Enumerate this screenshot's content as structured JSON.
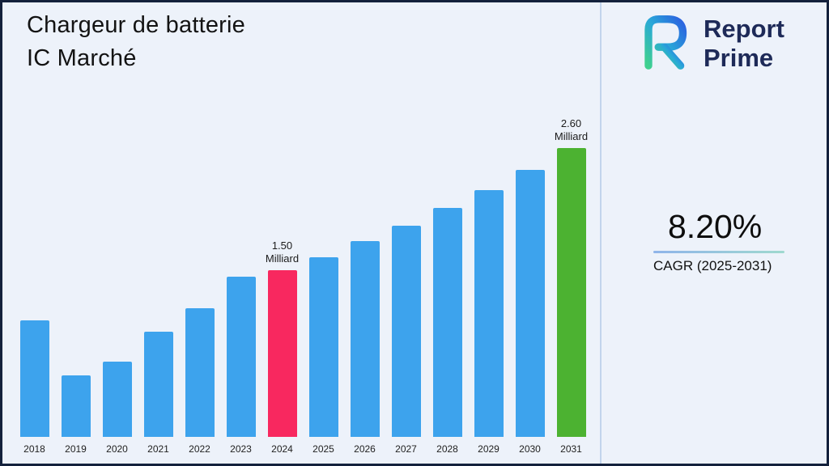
{
  "header": {
    "title_line1": "Chargeur de batterie",
    "title_line2": "IC Marché"
  },
  "brand": {
    "name_line1": "Report",
    "name_line2": "Prime",
    "name_color": "#1e2a58",
    "logo_icon": "reportprime-logo-icon",
    "logo_gradient": [
      "#3fd08f",
      "#29a8d8",
      "#2b5fe0"
    ]
  },
  "stats": {
    "cagr_value": "8.20%",
    "cagr_label": "CAGR (2025-2031)"
  },
  "chart_data": {
    "type": "bar",
    "title": "Chargeur de batterie IC Marché",
    "unit": "Milliard",
    "categories": [
      "2018",
      "2019",
      "2020",
      "2021",
      "2022",
      "2023",
      "2024",
      "2025",
      "2026",
      "2027",
      "2028",
      "2029",
      "2030",
      "2031"
    ],
    "values": [
      1.05,
      0.55,
      0.68,
      0.95,
      1.16,
      1.44,
      1.5,
      1.62,
      1.76,
      1.9,
      2.06,
      2.22,
      2.4,
      2.6
    ],
    "ylim": [
      0,
      2.6
    ],
    "grid": false,
    "legend": false,
    "bar_colors": {
      "default": "#3da3ed",
      "2024": "#f8285f",
      "2031": "#4cb231"
    },
    "annotations": [
      {
        "category": "2024",
        "lines": [
          "1.50",
          "Milliard"
        ]
      },
      {
        "category": "2031",
        "lines": [
          "2.60",
          "Milliard"
        ]
      }
    ]
  }
}
